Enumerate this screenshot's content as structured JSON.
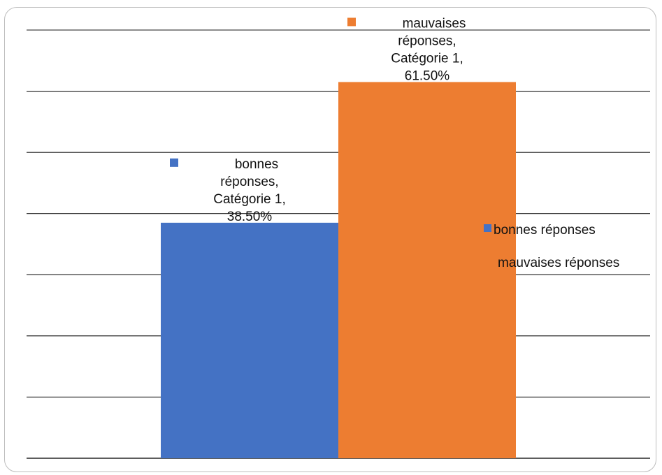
{
  "chart_data": {
    "type": "bar",
    "categories": [
      "Catégorie 1"
    ],
    "series": [
      {
        "name": "bonnes réponses",
        "values": [
          0.385
        ],
        "color": "#4472C4"
      },
      {
        "name": "mauvaises réponses",
        "values": [
          0.615
        ],
        "color": "#ED7D31"
      }
    ],
    "data_labels": [
      [
        "bonnes",
        "réponses,",
        "Catégorie 1,",
        "38.50%"
      ],
      [
        "mauvaises",
        "réponses,",
        "Catégorie 1,",
        "61.50%"
      ]
    ],
    "ylim": [
      0,
      0.7
    ],
    "y_gridline_step": 0.1,
    "grid": true,
    "axis_tick_labels_visible": false,
    "legend": {
      "placement": "right"
    },
    "title": "",
    "xlabel": "",
    "ylabel": ""
  }
}
